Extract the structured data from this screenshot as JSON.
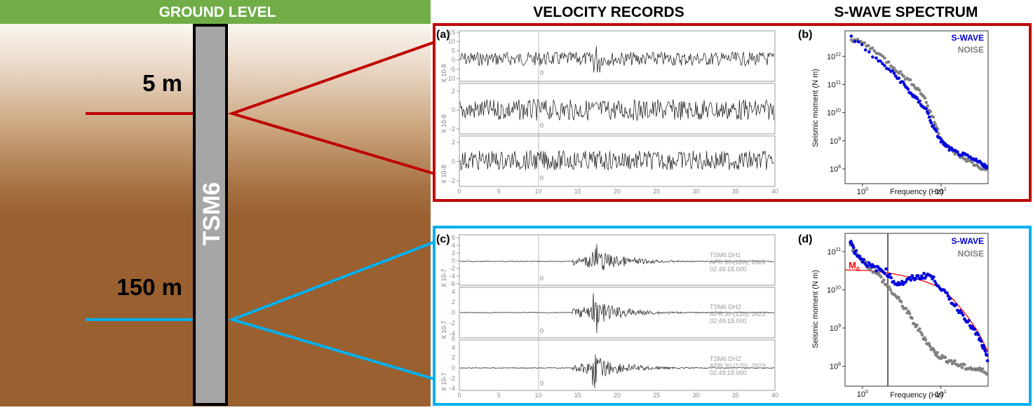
{
  "header": {
    "ground_level": "GROUND LEVEL",
    "velocity_records": "VELOCITY RECORDS",
    "swave_spectrum": "S-WAVE SPECTRUM"
  },
  "borehole": {
    "name": "TSM6",
    "depth_shallow": "5 m",
    "depth_deep": "150 m"
  },
  "colors": {
    "green": "#70ad47",
    "shallow": "#c00000",
    "deep": "#00b0f0",
    "blue_points": "#0000dd",
    "grey_points": "#808080",
    "fit": "#ff0000"
  },
  "panels": {
    "a": {
      "tag": "(a)",
      "zero": "0",
      "scale": "X 10-8",
      "ticks_top": [
        "15",
        "10",
        "5",
        "0",
        "-5",
        "-10"
      ],
      "ticks_mid": [
        "2",
        "0",
        "-2"
      ],
      "ticks_bot": [
        "2",
        "0",
        "-2"
      ],
      "xticks": [
        "0",
        "5",
        "10",
        "15",
        "20",
        "25",
        "30",
        "35",
        "40"
      ]
    },
    "c": {
      "tag": "(c)",
      "zero": "0",
      "scale": "X 10-7",
      "ticks": [
        "6",
        "4",
        "2",
        "0",
        "-2",
        "-4",
        "-6"
      ],
      "xticks": [
        "0",
        "5",
        "10",
        "15",
        "20",
        "25",
        "30",
        "35",
        "40"
      ],
      "traces": [
        {
          "station": "TSM6   DH1",
          "date": "APR 30 (120), 2023",
          "time": "02:49:18.000"
        },
        {
          "station": "TSM6   DH2",
          "date": "APR 30 (120), 2023",
          "time": "02:49:18.000"
        },
        {
          "station": "TSM6   DHZ",
          "date": "APR 30 (120), 2023",
          "time": "02:49:18.000"
        }
      ]
    },
    "b": {
      "tag": "(b)",
      "ylabel": "Seismic moment (N m)",
      "xlabel": "Frequency (Hz)",
      "legend_swave": "S-WAVE",
      "legend_noise": "NOISE",
      "yticks": [
        [
          "10",
          "12"
        ],
        [
          "10",
          "11"
        ],
        [
          "10",
          "10"
        ],
        [
          "10",
          "9"
        ],
        [
          "10",
          "8"
        ]
      ],
      "xticks": [
        [
          "10",
          "0"
        ],
        [
          "10",
          "1"
        ]
      ]
    },
    "d": {
      "tag": "(d)",
      "ylabel": "Seismic moment (N m)",
      "xlabel": "Frequency (Hz)",
      "legend_swave": "S-WAVE",
      "legend_noise": "NOISE",
      "m0": "M",
      "m0_sub": "0",
      "yticks": [
        [
          "10",
          "11"
        ],
        [
          "10",
          "10"
        ],
        [
          "10",
          "9"
        ],
        [
          "10",
          "8"
        ]
      ],
      "xticks": [
        [
          "10",
          "0"
        ],
        [
          "10",
          "1"
        ]
      ]
    }
  },
  "chart_data": [
    {
      "type": "scatter",
      "title": "",
      "xlabel": "Frequency (Hz)",
      "ylabel": "Seismic moment (N m)",
      "xscale": "log",
      "yscale": "log",
      "xlim": [
        0.6,
        40
      ],
      "ylim": [
        30000000.0,
        8000000000000.0
      ],
      "legend": "top-right",
      "series": [
        {
          "name": "S-WAVE",
          "color": "#0000dd",
          "x": [
            0.72,
            1.5,
            2.3,
            3.2,
            4.1,
            5.2,
            6.5,
            8,
            10,
            12,
            15,
            20,
            27,
            35,
            39
          ],
          "y": [
            5000000000000.0,
            800000000000.0,
            300000000000.0,
            120000000000.0,
            50000000000.0,
            25000000000.0,
            13000000000.0,
            3000000000.0,
            1000000000.0,
            600000000.0,
            400000000.0,
            300000000.0,
            200000000.0,
            150000000.0,
            100000000.0
          ]
        },
        {
          "name": "NOISE",
          "color": "#808080",
          "x": [
            0.72,
            1.0,
            1.5,
            2.3,
            3.2,
            4.5,
            6,
            8,
            10,
            13,
            17,
            22,
            30,
            39
          ],
          "y": [
            4000000000000.0,
            3000000000000.0,
            1500000000000.0,
            500000000000.0,
            220000000000.0,
            100000000000.0,
            40000000000.0,
            6000000000.0,
            1200000000.0,
            500000000.0,
            300000000.0,
            200000000.0,
            120000000.0,
            90000000.0
          ]
        }
      ]
    },
    {
      "type": "scatter",
      "title": "",
      "xlabel": "Frequency (Hz)",
      "ylabel": "Seismic moment (N m)",
      "xscale": "log",
      "yscale": "log",
      "xlim": [
        0.6,
        40
      ],
      "ylim": [
        30000000.0,
        300000000000.0
      ],
      "legend": "top-right",
      "series": [
        {
          "name": "S-WAVE",
          "color": "#0000dd",
          "x": [
            0.7,
            0.8,
            1.0,
            1.3,
            1.6,
            2.0,
            2.6,
            3.3,
            4.3,
            5.5,
            7,
            9,
            12,
            15,
            20,
            25,
            30,
            35,
            40
          ],
          "y": [
            200000000000.0,
            100000000000.0,
            60000000000.0,
            40000000000.0,
            35000000000.0,
            30000000000.0,
            15000000000.0,
            15000000000.0,
            20000000000.0,
            22000000000.0,
            25000000000.0,
            15000000000.0,
            7000000000.0,
            4000000000.0,
            2000000000.0,
            1000000000.0,
            600000000.0,
            300000000.0,
            130000000.0
          ]
        },
        {
          "name": "NOISE",
          "color": "#808080",
          "x": [
            0.7,
            0.9,
            1.2,
            1.6,
            2.1,
            2.8,
            3.6,
            4.6,
            6,
            7.5,
            9,
            11,
            14,
            18,
            23,
            30,
            40
          ],
          "y": [
            150000000000.0,
            80000000000.0,
            40000000000.0,
            25000000000.0,
            12000000000.0,
            6000000000.0,
            3000000000.0,
            1300000000.0,
            600000000.0,
            300000000.0,
            200000000.0,
            160000000.0,
            130000000.0,
            100000000.0,
            90000000.0,
            80000000.0,
            70000000.0
          ]
        }
      ]
    }
  ]
}
